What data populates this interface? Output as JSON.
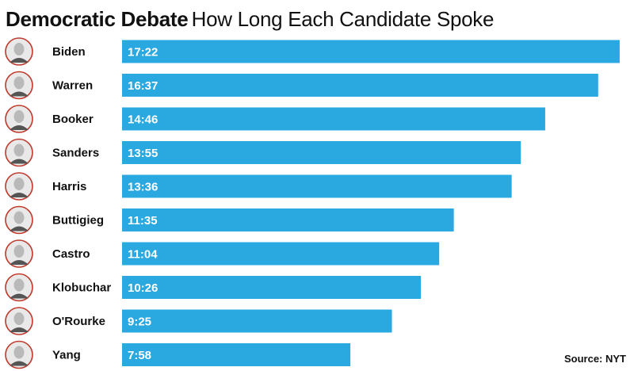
{
  "title": {
    "bold": "Democratic Debate",
    "light": "How Long Each Candidate Spoke"
  },
  "source": "Source: NYT",
  "colors": {
    "bar": "#2aa9e1",
    "bar_text": "#ffffff",
    "avatar_ring": "#c0392b"
  },
  "chart_data": {
    "type": "bar",
    "orientation": "horizontal",
    "title": "Democratic Debate How Long Each Candidate Spoke",
    "categories": [
      "Biden",
      "Warren",
      "Booker",
      "Sanders",
      "Harris",
      "Buttigieg",
      "Castro",
      "Klobuchar",
      "O'Rourke",
      "Yang"
    ],
    "labels": [
      "17:22",
      "16:37",
      "14:46",
      "13:55",
      "13:36",
      "11:35",
      "11:04",
      "10:26",
      "9:25",
      "7:58"
    ],
    "values": [
      17.37,
      16.62,
      14.77,
      13.92,
      13.6,
      11.58,
      11.07,
      10.43,
      9.42,
      7.97
    ],
    "unit": "minutes",
    "grid": false,
    "legend": "none"
  }
}
